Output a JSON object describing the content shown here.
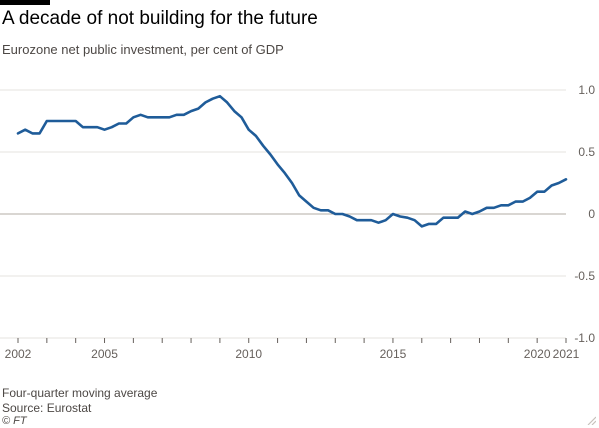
{
  "header": {
    "title": "A decade of not building for the future",
    "subtitle": "Eurozone net public investment, per cent of GDP"
  },
  "footer": {
    "note": "Four-quarter moving average",
    "source": "Source: Eurostat",
    "copyright": "© FT"
  },
  "colors": {
    "line": "#1f5c99",
    "grid": "#e6e3df",
    "zero_line": "#b3aca6",
    "axis": "#66605c"
  },
  "icons": {
    "corner": "resize-grip-icon"
  },
  "chart_data": {
    "type": "line",
    "xlim": [
      2002,
      2021
    ],
    "ylim": [
      -1.0,
      1.0
    ],
    "yticks": [
      -1.0,
      -0.5,
      0,
      0.5,
      1.0
    ],
    "ytick_labels": [
      "-1.0",
      "-0.5",
      "0",
      "0.5",
      "1.0"
    ],
    "xticks": [
      2002,
      2005,
      2010,
      2015,
      2020,
      2021
    ],
    "xtick_labels": [
      "2002",
      "2005",
      "2010",
      "2015",
      "2020",
      "2021"
    ],
    "grid": true,
    "series": [
      {
        "x": [
          2002.0,
          2002.25,
          2002.5,
          2002.75,
          2003.0,
          2003.25,
          2003.5,
          2003.75,
          2004.0,
          2004.25,
          2004.5,
          2004.75,
          2005.0,
          2005.25,
          2005.5,
          2005.75,
          2006.0,
          2006.25,
          2006.5,
          2006.75,
          2007.0,
          2007.25,
          2007.5,
          2007.75,
          2008.0,
          2008.25,
          2008.5,
          2008.75,
          2009.0,
          2009.25,
          2009.5,
          2009.75,
          2010.0,
          2010.25,
          2010.5,
          2010.75,
          2011.0,
          2011.25,
          2011.5,
          2011.75,
          2012.0,
          2012.25,
          2012.5,
          2012.75,
          2013.0,
          2013.25,
          2013.5,
          2013.75,
          2014.0,
          2014.25,
          2014.5,
          2014.75,
          2015.0,
          2015.25,
          2015.5,
          2015.75,
          2016.0,
          2016.25,
          2016.5,
          2016.75,
          2017.0,
          2017.25,
          2017.5,
          2017.75,
          2018.0,
          2018.25,
          2018.5,
          2018.75,
          2019.0,
          2019.25,
          2019.5,
          2019.75,
          2020.0,
          2020.25,
          2020.5,
          2020.75,
          2021.0
        ],
        "y": [
          0.65,
          0.68,
          0.65,
          0.65,
          0.75,
          0.75,
          0.75,
          0.75,
          0.75,
          0.7,
          0.7,
          0.7,
          0.68,
          0.7,
          0.73,
          0.73,
          0.78,
          0.8,
          0.78,
          0.78,
          0.78,
          0.78,
          0.8,
          0.8,
          0.83,
          0.85,
          0.9,
          0.93,
          0.95,
          0.9,
          0.83,
          0.78,
          0.68,
          0.63,
          0.55,
          0.48,
          0.4,
          0.33,
          0.25,
          0.15,
          0.1,
          0.05,
          0.03,
          0.03,
          0.0,
          0.0,
          -0.02,
          -0.05,
          -0.05,
          -0.05,
          -0.07,
          -0.05,
          0.0,
          -0.02,
          -0.03,
          -0.05,
          -0.1,
          -0.08,
          -0.08,
          -0.03,
          -0.03,
          -0.03,
          0.02,
          0.0,
          0.02,
          0.05,
          0.05,
          0.07,
          0.07,
          0.1,
          0.1,
          0.13,
          0.18,
          0.18,
          0.23,
          0.25,
          0.28
        ]
      }
    ]
  }
}
